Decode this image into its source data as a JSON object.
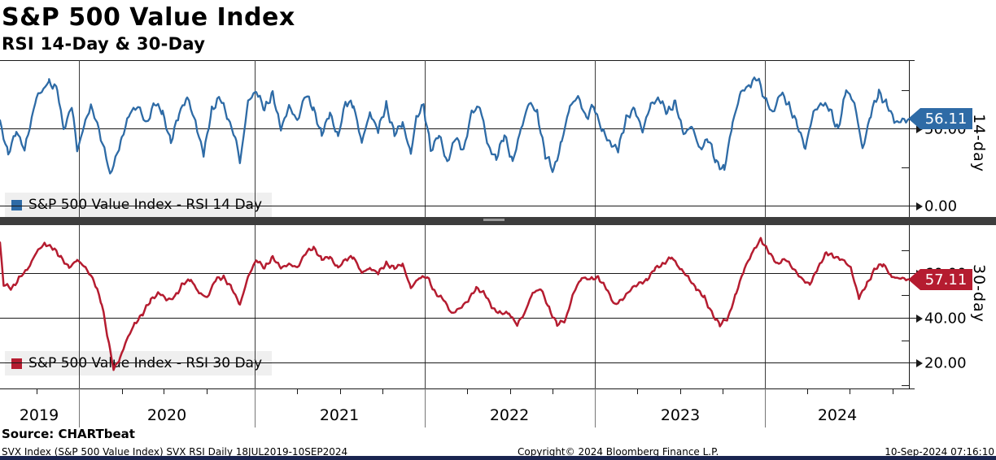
{
  "header": {
    "title": "S&P 500 Value Index",
    "subtitle": "RSI 14-Day & 30-Day"
  },
  "chart_data": {
    "type": "line",
    "title": "S&P 500 Value Index",
    "subtitle": "RSI 14-Day & 30-Day",
    "x_domain": [
      "18JUL2019",
      "10SEP2024"
    ],
    "x_axis": {
      "years": [
        {
          "label": "2019",
          "start": 0.0,
          "end": 0.0868
        },
        {
          "label": "2020",
          "start": 0.0868,
          "end": 0.2802
        },
        {
          "label": "2021",
          "start": 0.2802,
          "end": 0.4673
        },
        {
          "label": "2022",
          "start": 0.4673,
          "end": 0.6544
        },
        {
          "label": "2023",
          "start": 0.6544,
          "end": 0.8416
        },
        {
          "label": "2024",
          "start": 0.8416,
          "end": 1.0
        }
      ],
      "quarter_ticks": [
        0.04,
        0.134,
        0.18,
        0.227,
        0.327,
        0.374,
        0.421,
        0.514,
        0.561,
        0.608,
        0.701,
        0.748,
        0.795,
        0.888,
        0.935,
        0.982
      ]
    },
    "panels": [
      {
        "name": "RSI 14 Day",
        "side_label": "14-day",
        "legend_label": "S&P 500 Value Index - RSI 14 Day",
        "color": "#2E6BA6",
        "last_value": "56.11",
        "last_value_num": 56.11,
        "ylim": [
          -4,
          94
        ],
        "y_labeled": [
          {
            "text": "50.00",
            "value": 50
          },
          {
            "text": "0.00",
            "value": 0
          }
        ],
        "y_minor": [
          75,
          25
        ],
        "noise_amp": 3.0,
        "points": [
          [
            0,
            54
          ],
          [
            0.009,
            33
          ],
          [
            0.018,
            49
          ],
          [
            0.027,
            36
          ],
          [
            0.04,
            70
          ],
          [
            0.054,
            80
          ],
          [
            0.063,
            75
          ],
          [
            0.07,
            49
          ],
          [
            0.079,
            65
          ],
          [
            0.085,
            36
          ],
          [
            0.094,
            54
          ],
          [
            0.1,
            65
          ],
          [
            0.107,
            52
          ],
          [
            0.115,
            36
          ],
          [
            0.121,
            20
          ],
          [
            0.127,
            30
          ],
          [
            0.134,
            44
          ],
          [
            0.143,
            60
          ],
          [
            0.152,
            65
          ],
          [
            0.161,
            52
          ],
          [
            0.17,
            67
          ],
          [
            0.179,
            60
          ],
          [
            0.188,
            41
          ],
          [
            0.197,
            60
          ],
          [
            0.206,
            70
          ],
          [
            0.215,
            54
          ],
          [
            0.224,
            33
          ],
          [
            0.233,
            62
          ],
          [
            0.242,
            70
          ],
          [
            0.251,
            57
          ],
          [
            0.26,
            41
          ],
          [
            0.264,
            28
          ],
          [
            0.273,
            67
          ],
          [
            0.282,
            75
          ],
          [
            0.291,
            62
          ],
          [
            0.3,
            73
          ],
          [
            0.309,
            49
          ],
          [
            0.318,
            65
          ],
          [
            0.327,
            54
          ],
          [
            0.336,
            73
          ],
          [
            0.345,
            62
          ],
          [
            0.354,
            46
          ],
          [
            0.363,
            60
          ],
          [
            0.372,
            44
          ],
          [
            0.38,
            67
          ],
          [
            0.389,
            65
          ],
          [
            0.398,
            41
          ],
          [
            0.407,
            60
          ],
          [
            0.416,
            49
          ],
          [
            0.425,
            65
          ],
          [
            0.434,
            46
          ],
          [
            0.443,
            54
          ],
          [
            0.452,
            33
          ],
          [
            0.458,
            57
          ],
          [
            0.466,
            65
          ],
          [
            0.474,
            36
          ],
          [
            0.483,
            46
          ],
          [
            0.492,
            28
          ],
          [
            0.501,
            44
          ],
          [
            0.51,
            36
          ],
          [
            0.519,
            60
          ],
          [
            0.528,
            65
          ],
          [
            0.537,
            38
          ],
          [
            0.546,
            31
          ],
          [
            0.555,
            46
          ],
          [
            0.564,
            28
          ],
          [
            0.573,
            49
          ],
          [
            0.582,
            67
          ],
          [
            0.591,
            60
          ],
          [
            0.6,
            33
          ],
          [
            0.609,
            23
          ],
          [
            0.618,
            41
          ],
          [
            0.627,
            65
          ],
          [
            0.636,
            70
          ],
          [
            0.645,
            57
          ],
          [
            0.653,
            65
          ],
          [
            0.662,
            49
          ],
          [
            0.671,
            41
          ],
          [
            0.68,
            36
          ],
          [
            0.689,
            57
          ],
          [
            0.698,
            62
          ],
          [
            0.707,
            49
          ],
          [
            0.716,
            65
          ],
          [
            0.725,
            70
          ],
          [
            0.734,
            60
          ],
          [
            0.743,
            67
          ],
          [
            0.752,
            46
          ],
          [
            0.761,
            52
          ],
          [
            0.77,
            36
          ],
          [
            0.779,
            44
          ],
          [
            0.788,
            28
          ],
          [
            0.797,
            23
          ],
          [
            0.806,
            54
          ],
          [
            0.815,
            73
          ],
          [
            0.824,
            78
          ],
          [
            0.833,
            83
          ],
          [
            0.841,
            70
          ],
          [
            0.85,
            60
          ],
          [
            0.859,
            73
          ],
          [
            0.868,
            65
          ],
          [
            0.877,
            52
          ],
          [
            0.886,
            38
          ],
          [
            0.895,
            60
          ],
          [
            0.904,
            67
          ],
          [
            0.913,
            62
          ],
          [
            0.922,
            49
          ],
          [
            0.931,
            75
          ],
          [
            0.94,
            67
          ],
          [
            0.949,
            36
          ],
          [
            0.958,
            60
          ],
          [
            0.967,
            73
          ],
          [
            0.976,
            65
          ],
          [
            0.985,
            54
          ],
          [
            1,
            56.11
          ]
        ]
      },
      {
        "name": "RSI 30 Day",
        "side_label": "30-day",
        "legend_label": "S&P 500 Value Index - RSI 30 Day",
        "color": "#B51C30",
        "last_value": "57.11",
        "last_value_num": 57.11,
        "ylim": [
          8,
          81
        ],
        "y_labeled": [
          {
            "text": "60.00",
            "value": 60
          },
          {
            "text": "40.00",
            "value": 40
          },
          {
            "text": "20.00",
            "value": 20
          }
        ],
        "y_minor": [
          70,
          50,
          30,
          10
        ],
        "noise_amp": 1.05,
        "points": [
          [
            0,
            73
          ],
          [
            0.004,
            55
          ],
          [
            0.013,
            53
          ],
          [
            0.022,
            58
          ],
          [
            0.031,
            62
          ],
          [
            0.04,
            69
          ],
          [
            0.049,
            73
          ],
          [
            0.058,
            71
          ],
          [
            0.067,
            67
          ],
          [
            0.076,
            62
          ],
          [
            0.085,
            66
          ],
          [
            0.094,
            62
          ],
          [
            0.103,
            57
          ],
          [
            0.112,
            46
          ],
          [
            0.121,
            26
          ],
          [
            0.125,
            17
          ],
          [
            0.132,
            22
          ],
          [
            0.139,
            30
          ],
          [
            0.148,
            37
          ],
          [
            0.157,
            42
          ],
          [
            0.166,
            48
          ],
          [
            0.175,
            51
          ],
          [
            0.184,
            48
          ],
          [
            0.192,
            49
          ],
          [
            0.201,
            55
          ],
          [
            0.21,
            57
          ],
          [
            0.219,
            51
          ],
          [
            0.228,
            49
          ],
          [
            0.237,
            57
          ],
          [
            0.246,
            58
          ],
          [
            0.255,
            53
          ],
          [
            0.264,
            46
          ],
          [
            0.273,
            58
          ],
          [
            0.282,
            66
          ],
          [
            0.291,
            62
          ],
          [
            0.3,
            67
          ],
          [
            0.309,
            62
          ],
          [
            0.318,
            64
          ],
          [
            0.327,
            62
          ],
          [
            0.336,
            69
          ],
          [
            0.345,
            71
          ],
          [
            0.354,
            66
          ],
          [
            0.363,
            67
          ],
          [
            0.372,
            62
          ],
          [
            0.38,
            66
          ],
          [
            0.389,
            67
          ],
          [
            0.398,
            60
          ],
          [
            0.407,
            62
          ],
          [
            0.416,
            60
          ],
          [
            0.425,
            64
          ],
          [
            0.434,
            62
          ],
          [
            0.443,
            64
          ],
          [
            0.452,
            53
          ],
          [
            0.461,
            58
          ],
          [
            0.47,
            58
          ],
          [
            0.479,
            51
          ],
          [
            0.488,
            48
          ],
          [
            0.497,
            42
          ],
          [
            0.506,
            44
          ],
          [
            0.515,
            48
          ],
          [
            0.524,
            53
          ],
          [
            0.533,
            51
          ],
          [
            0.542,
            44
          ],
          [
            0.551,
            42
          ],
          [
            0.56,
            42
          ],
          [
            0.569,
            37
          ],
          [
            0.577,
            42
          ],
          [
            0.586,
            51
          ],
          [
            0.595,
            53
          ],
          [
            0.604,
            44
          ],
          [
            0.613,
            37
          ],
          [
            0.622,
            39
          ],
          [
            0.631,
            51
          ],
          [
            0.64,
            58
          ],
          [
            0.649,
            57
          ],
          [
            0.658,
            58
          ],
          [
            0.667,
            53
          ],
          [
            0.676,
            46
          ],
          [
            0.685,
            48
          ],
          [
            0.694,
            53
          ],
          [
            0.703,
            55
          ],
          [
            0.712,
            57
          ],
          [
            0.721,
            62
          ],
          [
            0.73,
            64
          ],
          [
            0.739,
            67
          ],
          [
            0.748,
            62
          ],
          [
            0.757,
            58
          ],
          [
            0.766,
            53
          ],
          [
            0.775,
            49
          ],
          [
            0.783,
            42
          ],
          [
            0.792,
            37
          ],
          [
            0.801,
            40
          ],
          [
            0.81,
            51
          ],
          [
            0.819,
            62
          ],
          [
            0.828,
            69
          ],
          [
            0.837,
            75
          ],
          [
            0.846,
            69
          ],
          [
            0.855,
            64
          ],
          [
            0.864,
            66
          ],
          [
            0.873,
            62
          ],
          [
            0.882,
            57
          ],
          [
            0.891,
            55
          ],
          [
            0.9,
            62
          ],
          [
            0.909,
            69
          ],
          [
            0.918,
            67
          ],
          [
            0.927,
            66
          ],
          [
            0.936,
            62
          ],
          [
            0.945,
            49
          ],
          [
            0.954,
            55
          ],
          [
            0.963,
            62
          ],
          [
            0.972,
            64
          ],
          [
            0.981,
            58
          ],
          [
            1,
            57.11
          ]
        ]
      }
    ]
  },
  "footer": {
    "source": "Source: CHARTbeat",
    "meta": "SVX Index (S&P 500 Value Index) SVX RSI  Daily 18JUL2019-10SEP2024",
    "copyright": "Copyright© 2024 Bloomberg Finance L.P.",
    "timestamp": "10-Sep-2024 07:16:10"
  },
  "colors": {
    "accent_blue": "#2E6BA6",
    "accent_red": "#B51C30",
    "separator_bar": "#3D3D3D",
    "legend_background": "#EFEFEF",
    "bottom_bar": "#1A2550",
    "gridline": "#1A1A1A"
  }
}
